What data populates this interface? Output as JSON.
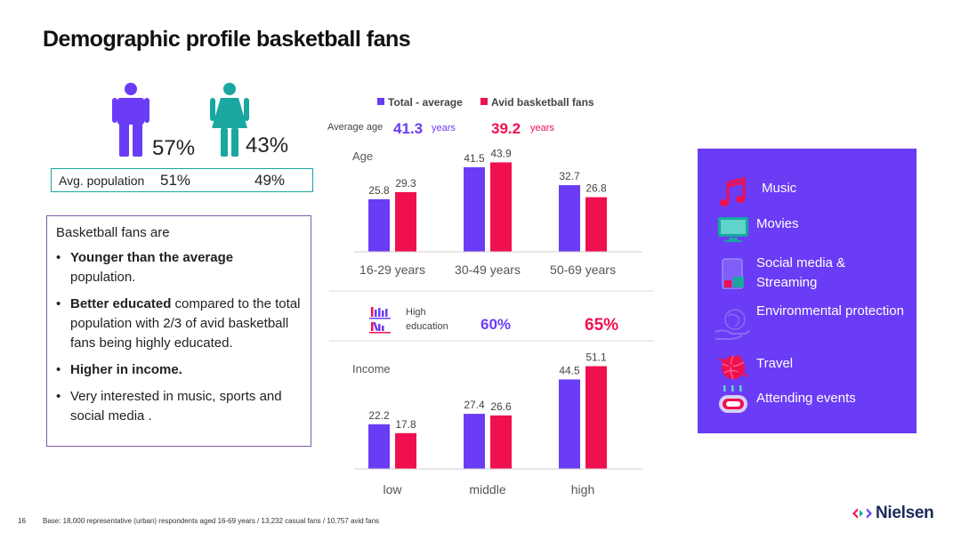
{
  "title": "Demographic profile basketball fans",
  "gender": {
    "male_pct": "57%",
    "female_pct": "43%",
    "avg_population_label": "Avg. population",
    "avg_population_male": "51%",
    "avg_population_female": "49%"
  },
  "summary": {
    "heading": "Basketball fans are",
    "bullets": [
      {
        "bold": "Younger than the average",
        "text": " population."
      },
      {
        "bold": "Better educated",
        "text": " compared to the total population with 2/3 of avid basketball fans being highly educated."
      },
      {
        "bold": "Higher in income.",
        "text": ""
      },
      {
        "bold": "",
        "text": "Very interested in music, sports and social media ."
      }
    ]
  },
  "chart_data": [
    {
      "type": "bar",
      "title": "Age",
      "categories": [
        "16-29 years",
        "30-49 years",
        "50-69 years"
      ],
      "series": [
        {
          "name": "Total - average",
          "values": [
            25.8,
            41.5,
            32.7
          ]
        },
        {
          "name": "Avid basketball fans",
          "values": [
            29.3,
            43.9,
            26.8
          ]
        }
      ],
      "ylim": [
        0,
        50
      ],
      "average_age": {
        "label": "Average age",
        "total": "41.3",
        "avid": "39.2",
        "unit": "years"
      }
    },
    {
      "type": "bar",
      "title": "Income",
      "categories": [
        "low",
        "middle",
        "high"
      ],
      "series": [
        {
          "name": "Total - average",
          "values": [
            22.2,
            27.4,
            44.5
          ]
        },
        {
          "name": "Avid basketball fans",
          "values": [
            17.8,
            26.6,
            51.1
          ]
        }
      ],
      "ylim": [
        0,
        60
      ]
    }
  ],
  "education": {
    "label_line1": "High",
    "label_line2": "education",
    "total": "60%",
    "avid": "65%"
  },
  "colors": {
    "total": "#6a3cf5",
    "avid": "#f0104f",
    "panel": "#6a3cf5",
    "teal": "#19a7a0"
  },
  "interests": [
    {
      "icon": "music-icon",
      "label": "Music"
    },
    {
      "icon": "movies-icon",
      "label": "Movies"
    },
    {
      "icon": "social-media-icon",
      "label": "Social media & Streaming"
    },
    {
      "icon": "environment-icon",
      "label": "Environmental protection"
    },
    {
      "icon": "travel-icon",
      "label": "Travel"
    },
    {
      "icon": "events-icon",
      "label": "Attending events"
    }
  ],
  "footer": {
    "page_number": "16",
    "footnote": "Base: 18,000 representative (urban) respondents aged 16-69 years / 13,232 casual fans / 10,757 avid fans",
    "logo": "Nielsen"
  }
}
